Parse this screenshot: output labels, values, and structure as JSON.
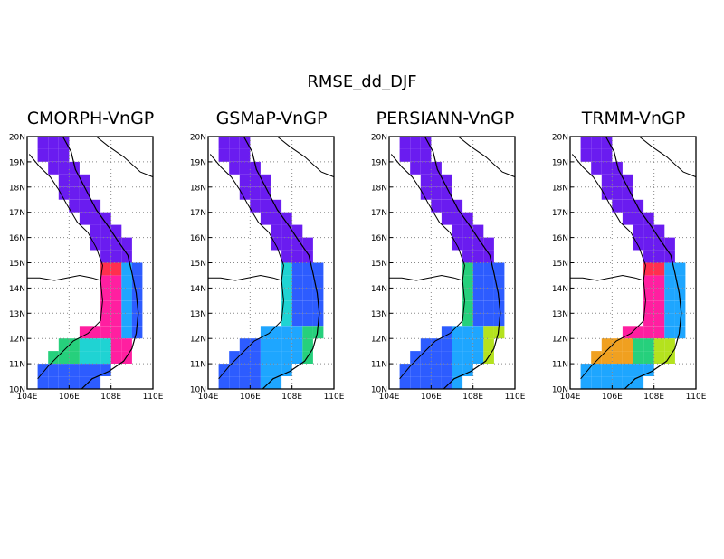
{
  "figure": {
    "title": "RMSE_dd_DJF"
  },
  "lat_labels": [
    "10N",
    "11N",
    "12N",
    "13N",
    "14N",
    "15N",
    "16N",
    "17N",
    "18N",
    "19N",
    "20N"
  ],
  "lon_labels": [
    "104E",
    "106E",
    "108E",
    "110E"
  ],
  "panels": [
    {
      "name": "CMORPH-VnGP",
      "pattern": "cmorph"
    },
    {
      "name": "GSMaP-VnGP",
      "pattern": "gsmap"
    },
    {
      "name": "PERSIANN-VnGP",
      "pattern": "persiann"
    },
    {
      "name": "TRMM-VnGP",
      "pattern": "trmm"
    }
  ],
  "colors": {
    "low": "#6a1cf0",
    "blue": "#2d5cff",
    "lightblue": "#1ea6ff",
    "cyan": "#1fd3d3",
    "green": "#26d07c",
    "yellow": "#b4e21e",
    "orange": "#f0a020",
    "red": "#ff2f4e",
    "pink": "#ff1fa0"
  }
}
